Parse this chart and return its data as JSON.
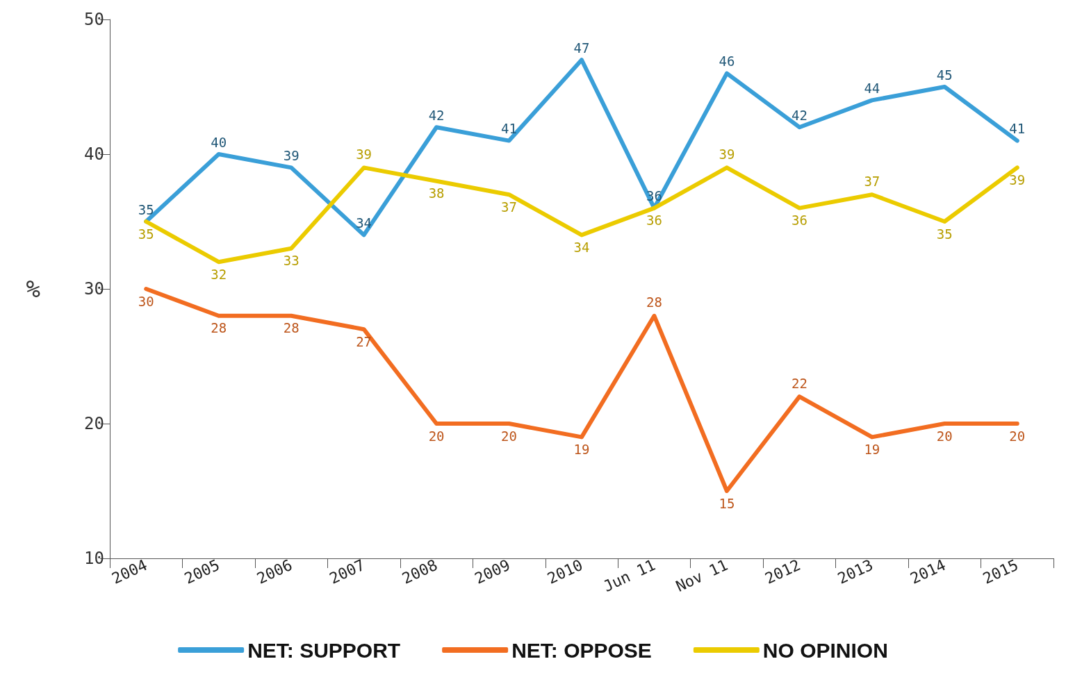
{
  "chart_data": {
    "type": "line",
    "ylabel": "%",
    "categories": [
      "2004",
      "2005",
      "2006",
      "2007",
      "2008",
      "2009",
      "2010",
      "Jun 11",
      "Nov 11",
      "2012",
      "2013",
      "2014",
      "2015"
    ],
    "series": [
      {
        "name": "NET: SUPPORT",
        "color": "#3a9fd8",
        "values": [
          35,
          40,
          39,
          34,
          42,
          41,
          47,
          36,
          46,
          42,
          44,
          45,
          41
        ]
      },
      {
        "name": "NET: OPPOSE",
        "color": "#f26d21",
        "values": [
          30,
          28,
          28,
          27,
          20,
          20,
          19,
          28,
          15,
          22,
          19,
          20,
          20
        ]
      },
      {
        "name": "NO OPINION",
        "color": "#ebcb00",
        "values": [
          35,
          32,
          33,
          39,
          38,
          37,
          34,
          36,
          39,
          36,
          37,
          35,
          39
        ]
      }
    ],
    "ylim": [
      10,
      50
    ],
    "yticks": [
      10,
      20,
      30,
      40,
      50
    ],
    "grid": false,
    "legend": "bottom",
    "marker": "none",
    "line_style": "solid",
    "data_labels": true
  }
}
